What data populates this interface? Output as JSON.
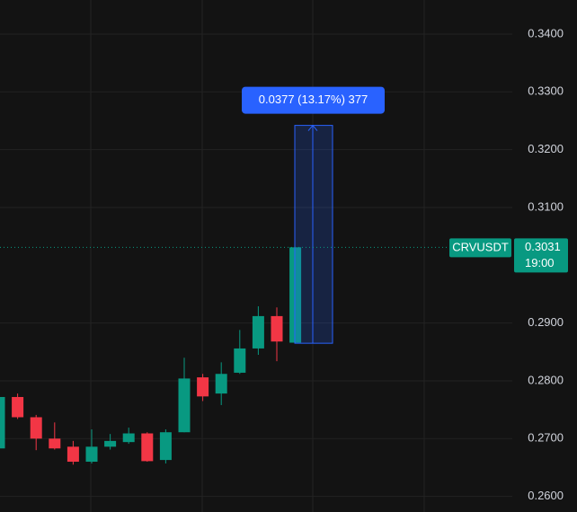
{
  "chart_data": {
    "type": "candlestick",
    "up_color": "#089981",
    "down_color": "#f23645",
    "ylim": [
      0.2573,
      0.3459
    ],
    "yticks": [
      {
        "value": 0.34,
        "label": "0.3400"
      },
      {
        "value": 0.33,
        "label": "0.3300"
      },
      {
        "value": 0.32,
        "label": "0.3200"
      },
      {
        "value": 0.31,
        "label": "0.3100"
      },
      {
        "value": 0.29,
        "label": "0.2900"
      },
      {
        "value": 0.28,
        "label": "0.2800"
      },
      {
        "value": 0.27,
        "label": "0.2700"
      },
      {
        "value": 0.26,
        "label": "0.2600"
      }
    ],
    "grid": true,
    "candles": [
      {
        "open": 0.2683,
        "high": 0.2775,
        "low": 0.268,
        "close": 0.2772
      },
      {
        "open": 0.2772,
        "high": 0.2778,
        "low": 0.2734,
        "close": 0.2737
      },
      {
        "open": 0.2737,
        "high": 0.2741,
        "low": 0.268,
        "close": 0.27
      },
      {
        "open": 0.27,
        "high": 0.2728,
        "low": 0.2681,
        "close": 0.2683
      },
      {
        "open": 0.2686,
        "high": 0.2696,
        "low": 0.2655,
        "close": 0.266
      },
      {
        "open": 0.266,
        "high": 0.2716,
        "low": 0.2657,
        "close": 0.2686
      },
      {
        "open": 0.2686,
        "high": 0.2708,
        "low": 0.2681,
        "close": 0.2696
      },
      {
        "open": 0.2694,
        "high": 0.2719,
        "low": 0.2691,
        "close": 0.2709
      },
      {
        "open": 0.2709,
        "high": 0.2711,
        "low": 0.266,
        "close": 0.2661
      },
      {
        "open": 0.2663,
        "high": 0.2716,
        "low": 0.2657,
        "close": 0.2711
      },
      {
        "open": 0.2711,
        "high": 0.284,
        "low": 0.2711,
        "close": 0.2804
      },
      {
        "open": 0.2806,
        "high": 0.2812,
        "low": 0.2765,
        "close": 0.2773
      },
      {
        "open": 0.2778,
        "high": 0.2832,
        "low": 0.2758,
        "close": 0.2812
      },
      {
        "open": 0.2814,
        "high": 0.2888,
        "low": 0.2812,
        "close": 0.2856
      },
      {
        "open": 0.2856,
        "high": 0.2929,
        "low": 0.2845,
        "close": 0.2912
      },
      {
        "open": 0.2912,
        "high": 0.2927,
        "low": 0.2834,
        "close": 0.2868
      },
      {
        "open": 0.2866,
        "high": 0.3031,
        "low": 0.2865,
        "close": 0.3031
      }
    ],
    "measure": {
      "from": 0.2865,
      "to": 0.3242,
      "label": "0.0377 (13.17%) 377"
    },
    "symbol": "CRVUSDT",
    "last_price": {
      "value": 0.3031,
      "label": "0.3031"
    },
    "countdown": "19:00"
  }
}
